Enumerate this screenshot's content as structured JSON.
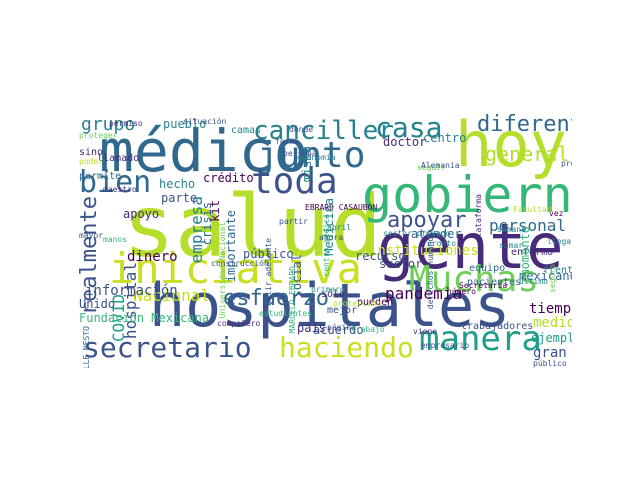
{
  "palette": {
    "dark_purple": "#440154",
    "indigo": "#472a7a",
    "blue": "#3b528b",
    "steel_blue": "#31688e",
    "teal": "#26828e",
    "green_teal": "#1f9e89",
    "green": "#35b779",
    "light_green": "#6ece58",
    "lime": "#b5de2b",
    "yellow": "#c8e020"
  },
  "words": [
    {
      "text": "salud",
      "color": "#b5de2b"
    },
    {
      "text": "hospitales",
      "color": "#3b528b"
    },
    {
      "text": "médico",
      "color": "#31688e"
    },
    {
      "text": "hoy",
      "color": "#b5de2b"
    },
    {
      "text": "gente",
      "color": "#472a7a"
    },
    {
      "text": "gobierno",
      "color": "#35b779"
    },
    {
      "text": "iniciativa",
      "color": "#c8e020"
    },
    {
      "text": "Muchas",
      "color": "#6ece58"
    },
    {
      "text": "manera",
      "color": "#1f9e89"
    },
    {
      "text": "secretario",
      "color": "#3b528b"
    },
    {
      "text": "haciendo",
      "color": "#c8e020"
    },
    {
      "text": "junto",
      "color": "#31688e"
    },
    {
      "text": "toda",
      "color": "#3b528b"
    },
    {
      "text": "bien",
      "color": "#31688e"
    },
    {
      "text": "casa",
      "color": "#26828e"
    },
    {
      "text": "canciller",
      "color": "#26828e"
    },
    {
      "text": "diferente",
      "color": "#31688e"
    },
    {
      "text": "apoyar",
      "color": "#3b528b"
    },
    {
      "text": "realmente",
      "color": "#3b528b"
    },
    {
      "text": "esfuerzo",
      "color": "#31688e"
    },
    {
      "text": "empresa",
      "color": "#26828e"
    },
    {
      "text": "general",
      "color": "#b5de2b"
    },
    {
      "text": "personal",
      "color": "#31688e"
    },
    {
      "text": "grupo",
      "color": "#26828e"
    },
    {
      "text": "hospital",
      "color": "#3b528b"
    },
    {
      "text": "Nacional",
      "color": "#c8e020"
    },
    {
      "text": "pandemia",
      "color": "#440154"
    },
    {
      "text": "medida",
      "color": "#b5de2b"
    },
    {
      "text": "tiempo",
      "color": "#440154"
    },
    {
      "text": "ejemplo",
      "color": "#1f9e89"
    },
    {
      "text": "gran",
      "color": "#3b528b"
    },
    {
      "text": "COVID",
      "color": "#1f9e89"
    },
    {
      "text": "Medicina",
      "color": "#26828e"
    },
    {
      "text": "instituciones",
      "color": "#c8e020"
    },
    {
      "text": "información",
      "color": "#3b528b"
    },
    {
      "text": "dinero",
      "color": "#440154"
    },
    {
      "text": "apoyo",
      "color": "#472a7a"
    },
    {
      "text": "crisis",
      "color": "#31688e"
    },
    {
      "text": "kit",
      "color": "#440154"
    },
    {
      "text": "pueblo",
      "color": "#26828e"
    },
    {
      "text": "importante",
      "color": "#31688e"
    },
    {
      "text": "crédito",
      "color": "#440154"
    },
    {
      "text": "hecho",
      "color": "#26828e"
    },
    {
      "text": "parte",
      "color": "#3b528b"
    },
    {
      "text": "doctor",
      "color": "#472a7a"
    },
    {
      "text": "centro",
      "color": "#26828e"
    },
    {
      "text": "sector",
      "color": "#3b528b"
    },
    {
      "text": "atender",
      "color": "#31688e"
    },
    {
      "text": "recurso",
      "color": "#3b528b"
    },
    {
      "text": "mexicano",
      "color": "#31688e"
    },
    {
      "text": "equipo",
      "color": "#31688e"
    },
    {
      "text": "enfermo",
      "color": "#472a7a"
    },
    {
      "text": "momento",
      "color": "#35b779"
    },
    {
      "text": "pacientes",
      "color": "#31688e"
    },
    {
      "text": "Unido",
      "color": "#3b528b"
    },
    {
      "text": "Fundación Mexicana",
      "color": "#35b779"
    },
    {
      "text": "público",
      "color": "#3b528b"
    },
    {
      "text": "social",
      "color": "#3b528b"
    },
    {
      "text": "pueden",
      "color": "#440154"
    },
    {
      "text": "país",
      "color": "#472a7a"
    },
    {
      "text": "acuerdo",
      "color": "#3b528b"
    },
    {
      "text": "mismo",
      "color": "#26828e"
    },
    {
      "text": "trabajadores",
      "color": "#3b528b"
    },
    {
      "text": "sino",
      "color": "#472a7a"
    },
    {
      "text": "permite",
      "color": "#31688e"
    },
    {
      "text": "camas",
      "color": "#26828e"
    },
    {
      "text": "economía",
      "color": "#26828e"
    },
    {
      "text": "frente",
      "color": "#26828e"
    },
    {
      "text": "sólo",
      "color": "#472a7a"
    },
    {
      "text": "mejor",
      "color": "#3b528b"
    },
    {
      "text": "llamado",
      "color": "#472a7a"
    },
    {
      "text": "plataforma",
      "color": "#472a7a"
    },
    {
      "text": "Secretaría",
      "color": "#440154"
    },
    {
      "text": "permiso",
      "color": "#472a7a"
    },
    {
      "text": "situación",
      "color": "#3b528b"
    },
    {
      "text": "proteger",
      "color": "#6ece58"
    },
    {
      "text": "persona",
      "color": "#3b528b"
    },
    {
      "text": "forma",
      "color": "#3b528b"
    },
    {
      "text": "dónde",
      "color": "#3b528b"
    },
    {
      "text": "construcción",
      "color": "#3b528b"
    },
    {
      "text": "compañero",
      "color": "#472a7a"
    },
    {
      "text": "estudiantes",
      "color": "#35b779"
    },
    {
      "text": "empresario",
      "color": "#3b528b"
    },
    {
      "text": "página",
      "color": "#3b528b"
    },
    {
      "text": "trabajo",
      "color": "#35b779"
    },
    {
      "text": "viene",
      "color": "#472a7a"
    },
    {
      "text": "público",
      "color": "#3b528b"
    },
    {
      "text": "llegar",
      "color": "#26828e"
    },
    {
      "text": "último",
      "color": "#26828e"
    },
    {
      "text": "sumar",
      "color": "#26828e"
    },
    {
      "text": "pronto",
      "color": "#26828e"
    },
    {
      "text": "número",
      "color": "#440154"
    },
    {
      "text": "primero",
      "color": "#1f9e89"
    },
    {
      "text": "protección",
      "color": "#b5de2b"
    },
    {
      "text": "maestro",
      "color": "#472a7a"
    },
    {
      "text": "manos",
      "color": "#35b779"
    },
    {
      "text": "mayor",
      "color": "#3b528b"
    },
    {
      "text": "poder",
      "color": "#b5de2b"
    },
    {
      "text": "seguir",
      "color": "#6ece58"
    },
    {
      "text": "semana",
      "color": "#26828e"
    },
    {
      "text": "salir adelante",
      "color": "#3b528b"
    },
    {
      "text": "partir",
      "color": "#3b528b"
    },
    {
      "text": "Universidad Nacional",
      "color": "#6ece58"
    },
    {
      "text": "EBRARD CASAUBÓN",
      "color": "#440154"
    },
    {
      "text": "MARCELO EBRARD",
      "color": "#35b779"
    },
    {
      "text": "VALLE NESTO",
      "color": "#31688e"
    },
    {
      "text": "derechos humanos",
      "color": "#3b528b"
    },
    {
      "text": "Alemania",
      "color": "#3b528b"
    },
    {
      "text": "abril",
      "color": "#26828e"
    },
    {
      "text": "vez",
      "color": "#440154"
    },
    {
      "text": "seguro",
      "color": "#6ece58"
    },
    {
      "text": "presupuesto",
      "color": "#3b528b"
    },
    {
      "text": "Facultad",
      "color": "#b5de2b"
    },
    {
      "text": "ahora",
      "color": "#3b528b"
    },
    {
      "text": "centro médico",
      "color": "#35b779"
    },
    {
      "text": "sector privado",
      "color": "#26828e"
    },
    {
      "text": "sentido",
      "color": "#31688e"
    }
  ]
}
